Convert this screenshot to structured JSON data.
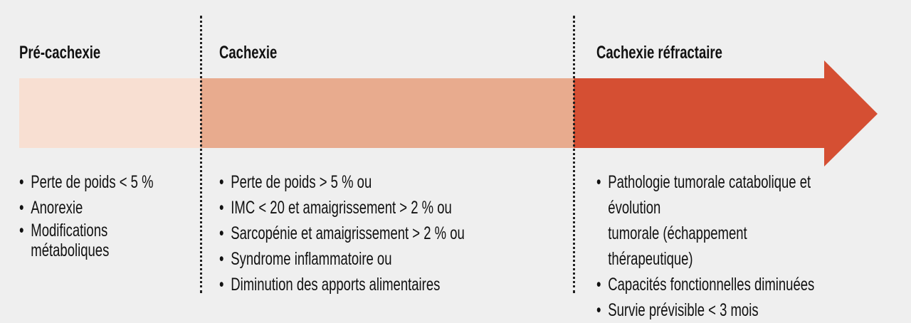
{
  "colors": {
    "pre": "#f8dfd2",
    "cachexie": "#e8ab8e",
    "refractaire": "#d54f33",
    "background": "#efefef"
  },
  "stages": [
    {
      "title": "Pré-cachexie",
      "items": [
        "Perte de poids < 5 %",
        "Anorexie",
        "Modifications\nmétaboliques"
      ]
    },
    {
      "title": "Cachexie",
      "items": [
        "Perte de poids > 5 % ou",
        "IMC < 20 et amaigrissement > 2 % ou",
        "Sarcopénie et amaigrissement > 2 % ou",
        "Syndrome inflammatoire ou",
        "Diminution des apports alimentaires"
      ]
    },
    {
      "title": "Cachexie réfractaire",
      "items": [
        "Pathologie tumorale catabolique et évolution\ntumorale (échappement thérapeutique)",
        "Capacités fonctionnelles diminuées",
        "Survie prévisible < 3 mois"
      ]
    }
  ]
}
